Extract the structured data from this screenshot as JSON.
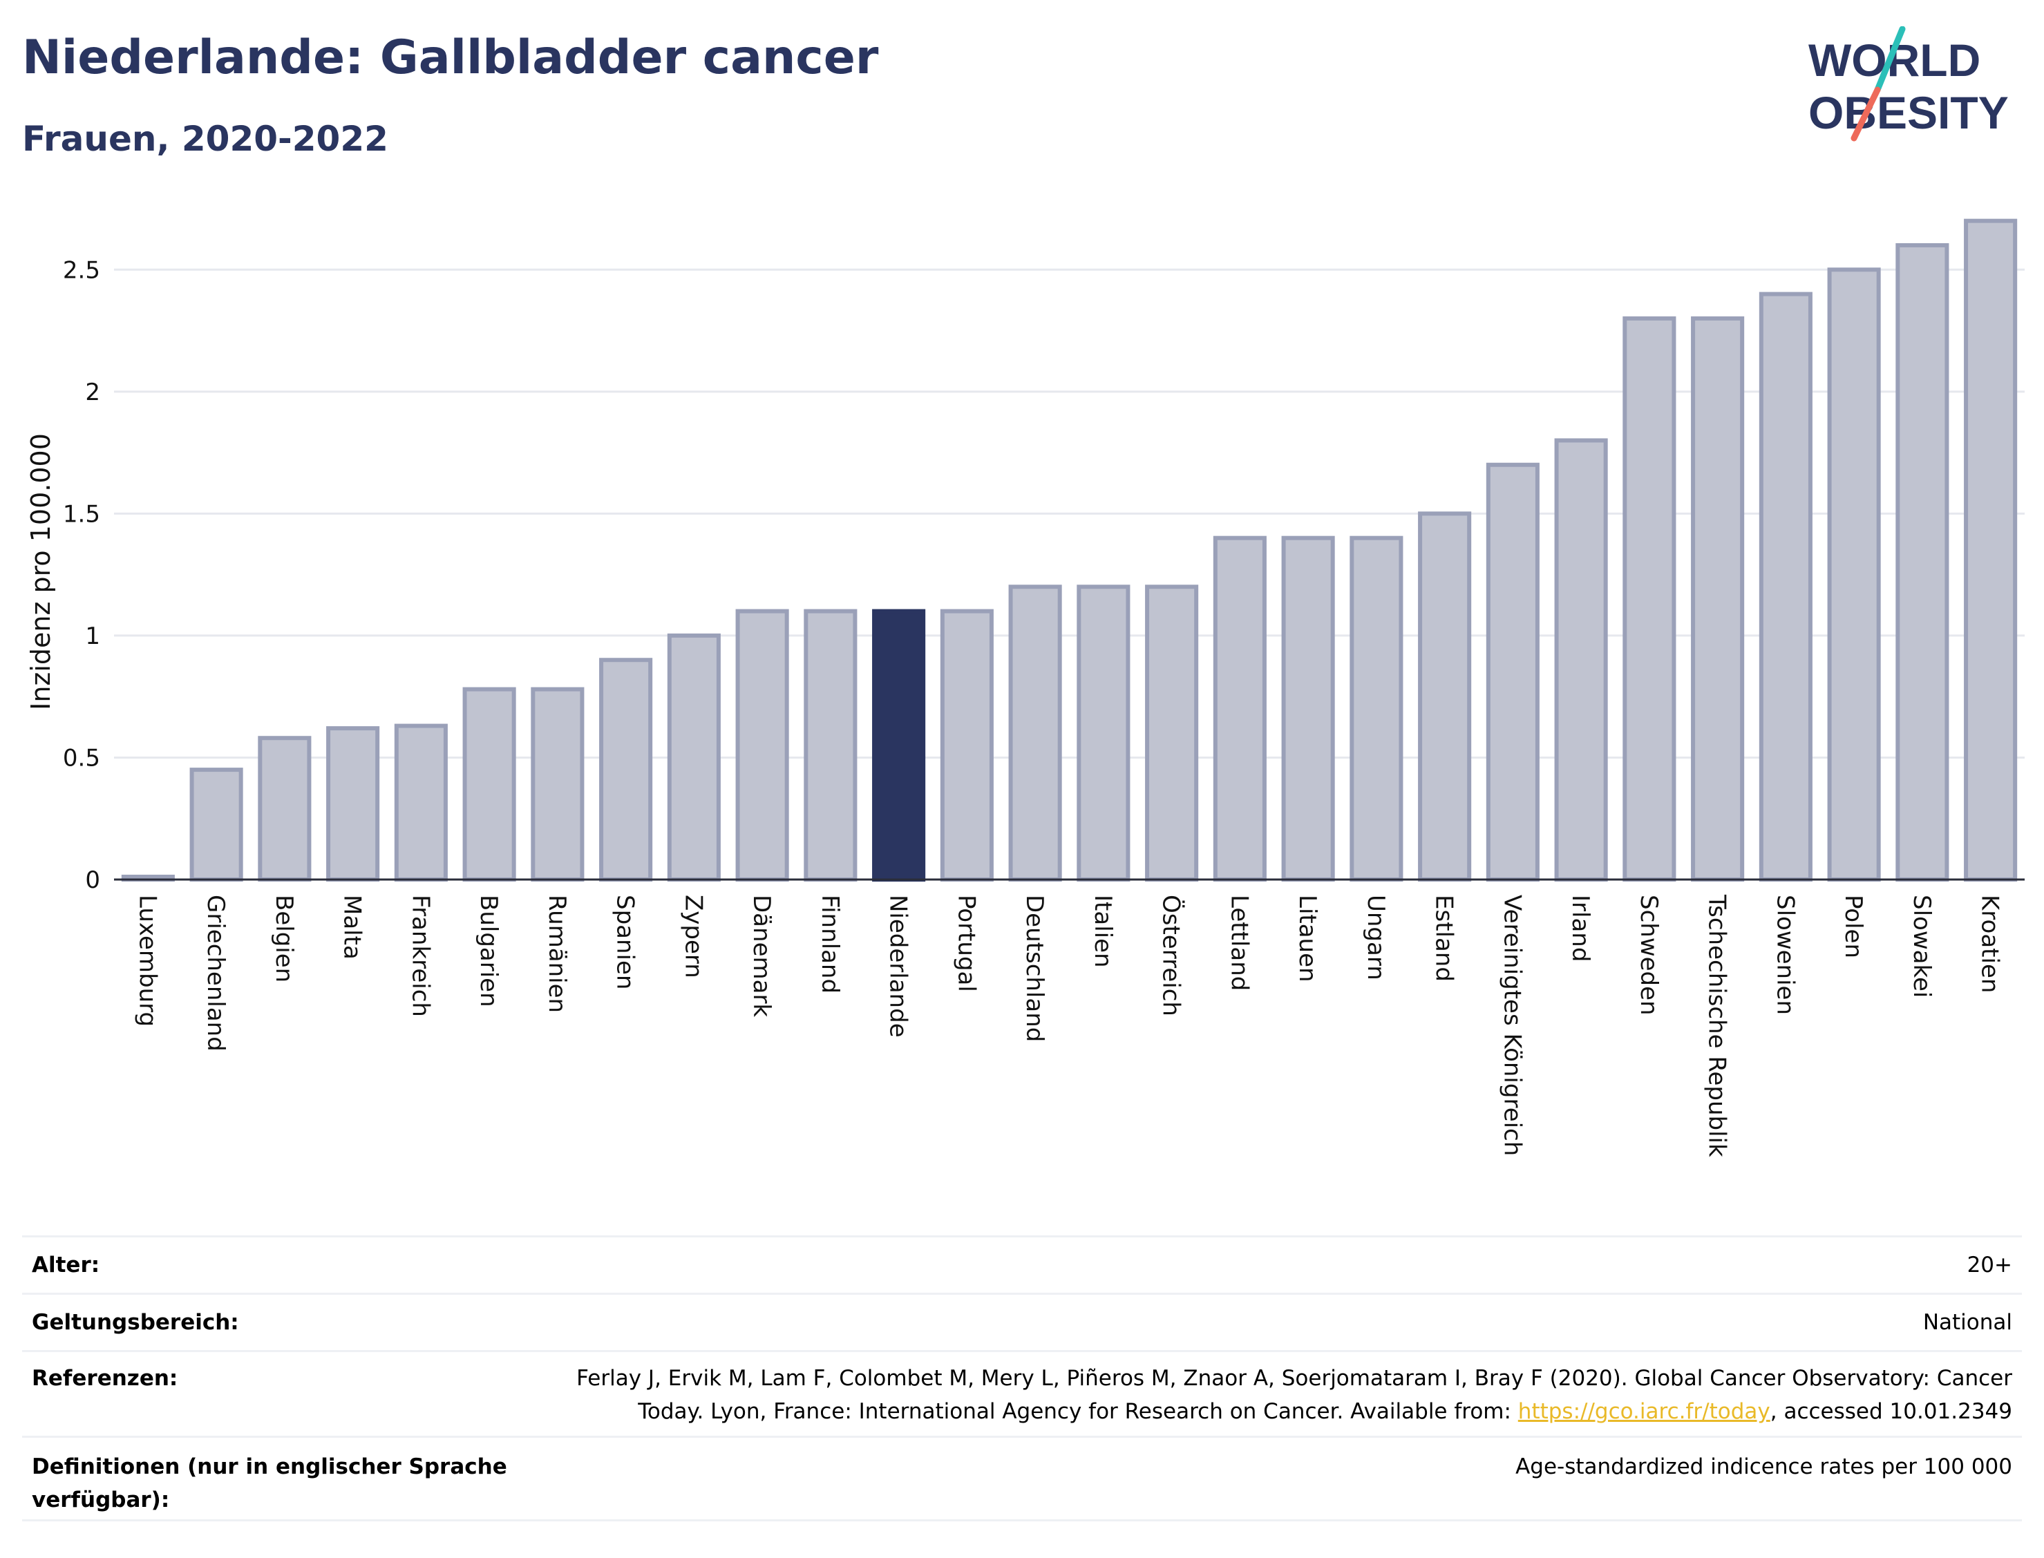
{
  "header": {
    "title": "Niederlande: Gallbladder cancer",
    "subtitle": "Frauen, 2020-2022"
  },
  "logo": {
    "line1": "WORLD",
    "line2": "OBESITY",
    "accent_teal": "#2bbfb8",
    "accent_coral": "#ee6a5a"
  },
  "colors": {
    "bar": "#c0c3d0",
    "bar_stroke": "#9aa0b8",
    "highlight": "#2a3560",
    "grid": "#e6e8ee",
    "text_dark": "#2a3560"
  },
  "chart_data": {
    "type": "bar",
    "ylabel": "Inzidenz pro 100.000",
    "ylim": [
      0,
      2.75
    ],
    "yticks": [
      0,
      0.5,
      1,
      1.5,
      2,
      2.5
    ],
    "ytick_labels": [
      "0",
      "0.5",
      "1",
      "1.5",
      "2",
      "2.5"
    ],
    "highlight_category": "Niederlande",
    "grid": true,
    "categories": [
      "Luxemburg",
      "Griechenland",
      "Belgien",
      "Malta",
      "Frankreich",
      "Bulgarien",
      "Rumänien",
      "Spanien",
      "Zypern",
      "Dänemark",
      "Finnland",
      "Niederlande",
      "Portugal",
      "Deutschland",
      "Italien",
      "Österreich",
      "Lettland",
      "Litauen",
      "Ungarn",
      "Estland",
      "Vereinigtes Königreich",
      "Irland",
      "Schweden",
      "Tschechische Republik",
      "Slowenien",
      "Polen",
      "Slowakei",
      "Kroatien"
    ],
    "values": [
      0.01,
      0.45,
      0.58,
      0.62,
      0.63,
      0.78,
      0.78,
      0.9,
      1.0,
      1.1,
      1.1,
      1.1,
      1.1,
      1.2,
      1.2,
      1.2,
      1.4,
      1.4,
      1.4,
      1.5,
      1.7,
      1.8,
      2.3,
      2.3,
      2.4,
      2.5,
      2.6,
      2.7
    ]
  },
  "meta": {
    "age_label": "Alter:",
    "age_value": "20+",
    "scope_label": "Geltungsbereich:",
    "scope_value": "National",
    "ref_label": "Referenzen:",
    "ref_text_1": "Ferlay J, Ervik M, Lam F, Colombet M, Mery L, Piñeros M, Znaor A, Soerjomataram I, Bray F (2020). Global Cancer Observatory: Cancer",
    "ref_text_2": "Today. Lyon, France: International Agency for Research on Cancer. Available from: ",
    "ref_link": "https://gco.iarc.fr/today",
    "ref_text_3": ", accessed 10.01.2349",
    "def_label_1": "Definitionen (nur in englischer Sprache",
    "def_label_2": "verfügbar):",
    "def_value": "Age-standardized indicence rates per 100 000"
  }
}
